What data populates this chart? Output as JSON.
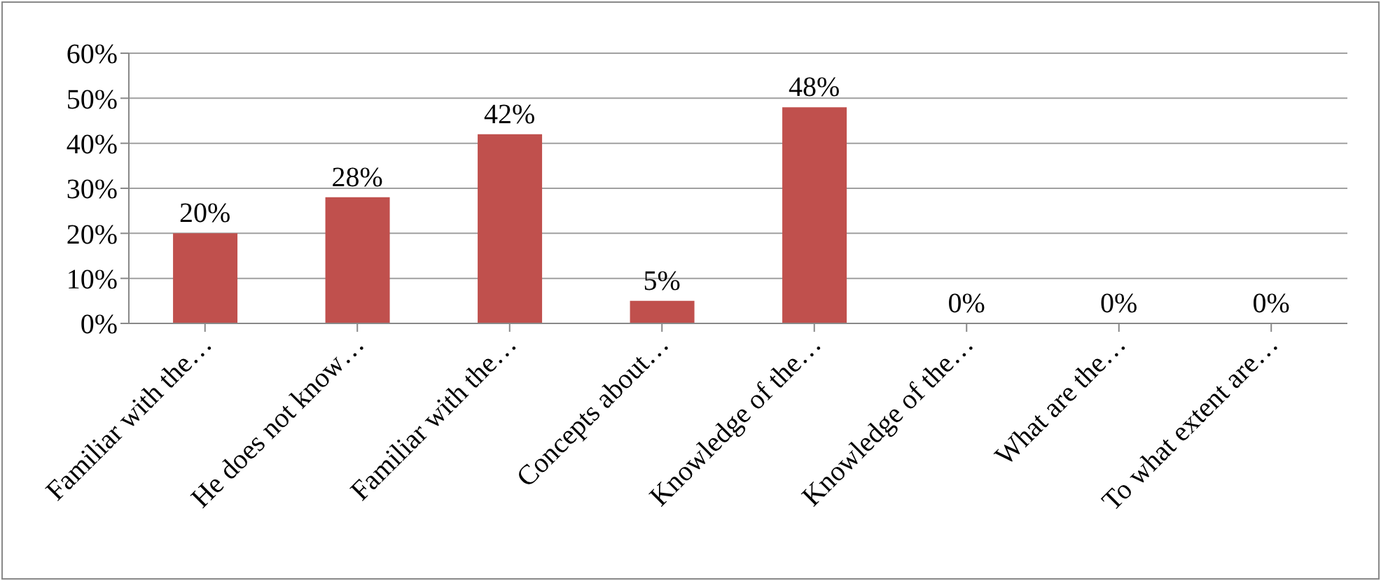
{
  "chart_data": {
    "type": "bar",
    "categories": [
      "Familiar with the…",
      "He does not know…",
      "Familiar with the…",
      "Concepts about…",
      "Knowledge of the…",
      "Knowledge of the…",
      "What are the…",
      "To what extent are…"
    ],
    "values": [
      20,
      28,
      42,
      5,
      48,
      0,
      0,
      0
    ],
    "value_labels": [
      "20%",
      "28%",
      "42%",
      "5%",
      "48%",
      "0%",
      "0%",
      "0%"
    ],
    "color": "#c0504d",
    "ylim": [
      0,
      60
    ],
    "yticks": [
      {
        "value": 0,
        "label": "0%"
      },
      {
        "value": 10,
        "label": "10%"
      },
      {
        "value": 20,
        "label": "20%"
      },
      {
        "value": 30,
        "label": "30%"
      },
      {
        "value": 40,
        "label": "40%"
      },
      {
        "value": 50,
        "label": "50%"
      },
      {
        "value": 60,
        "label": "60%"
      }
    ],
    "grid": "y",
    "legend": false
  }
}
